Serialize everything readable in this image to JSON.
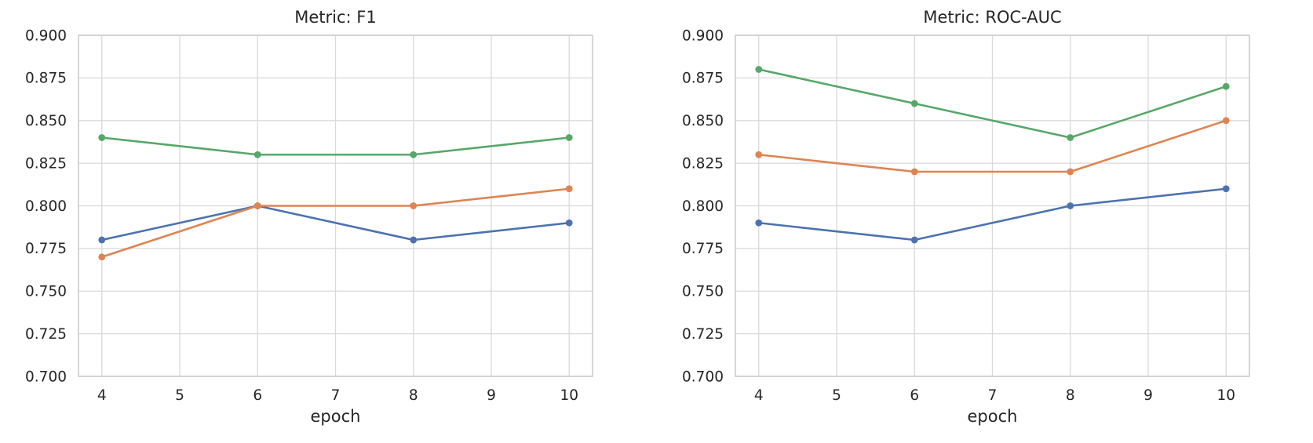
{
  "style": {
    "background": "#ffffff",
    "grid_color": "#d9d9d9",
    "spine_color": "#cccccc",
    "text_color": "#262626"
  },
  "chart_data": [
    {
      "type": "line",
      "title": "Metric: F1",
      "xlabel": "epoch",
      "ylabel": "",
      "x": [
        4,
        6,
        8,
        10
      ],
      "x_ticks": [
        4,
        5,
        6,
        7,
        8,
        9,
        10
      ],
      "xlim": [
        3.7,
        10.3
      ],
      "y_ticks": [
        "0.700",
        "0.725",
        "0.750",
        "0.775",
        "0.800",
        "0.825",
        "0.850",
        "0.875",
        "0.900"
      ],
      "ylim": [
        0.7,
        0.9
      ],
      "grid": true,
      "legend": "none",
      "series": [
        {
          "name": "blue-series",
          "color": "#4C72B0",
          "values": [
            0.78,
            0.8,
            0.78,
            0.79
          ]
        },
        {
          "name": "orange-series",
          "color": "#DD8452",
          "values": [
            0.77,
            0.8,
            0.8,
            0.81
          ]
        },
        {
          "name": "green-series",
          "color": "#55A868",
          "values": [
            0.84,
            0.83,
            0.83,
            0.84
          ]
        }
      ]
    },
    {
      "type": "line",
      "title": "Metric: ROC-AUC",
      "xlabel": "epoch",
      "ylabel": "",
      "x": [
        4,
        6,
        8,
        10
      ],
      "x_ticks": [
        4,
        5,
        6,
        7,
        8,
        9,
        10
      ],
      "xlim": [
        3.7,
        10.3
      ],
      "y_ticks": [
        "0.700",
        "0.725",
        "0.750",
        "0.775",
        "0.800",
        "0.825",
        "0.850",
        "0.875",
        "0.900"
      ],
      "ylim": [
        0.7,
        0.9
      ],
      "grid": true,
      "legend": "none",
      "series": [
        {
          "name": "blue-series",
          "color": "#4C72B0",
          "values": [
            0.79,
            0.78,
            0.8,
            0.81
          ]
        },
        {
          "name": "orange-series",
          "color": "#DD8452",
          "values": [
            0.83,
            0.82,
            0.82,
            0.85
          ]
        },
        {
          "name": "green-series",
          "color": "#55A868",
          "values": [
            0.88,
            0.86,
            0.84,
            0.87
          ]
        }
      ]
    }
  ]
}
